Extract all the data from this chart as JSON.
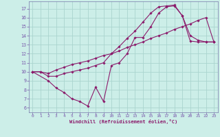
{
  "xlabel": "Windchill (Refroidissement éolien,°C)",
  "bg_color": "#cceee8",
  "grid_color": "#aad4ce",
  "line_color": "#8b1a6b",
  "spine_color": "#7777aa",
  "tick_color": "#7755aa",
  "xlim": [
    -0.5,
    23.5
  ],
  "ylim": [
    5.5,
    17.8
  ],
  "yticks": [
    6,
    7,
    8,
    9,
    10,
    11,
    12,
    13,
    14,
    15,
    16,
    17
  ],
  "xticks": [
    0,
    1,
    2,
    3,
    4,
    5,
    6,
    7,
    8,
    9,
    10,
    11,
    12,
    13,
    14,
    15,
    16,
    17,
    18,
    19,
    20,
    21,
    22,
    23
  ],
  "series": [
    {
      "x": [
        0,
        1,
        2,
        3,
        4,
        5,
        6,
        7,
        8,
        9,
        10,
        11,
        12,
        13,
        14,
        15,
        16,
        17,
        18,
        19,
        20,
        21,
        22,
        23
      ],
      "y": [
        10.0,
        10.0,
        9.8,
        10.2,
        10.5,
        10.8,
        11.0,
        11.2,
        11.5,
        11.8,
        12.0,
        12.3,
        12.7,
        13.0,
        13.3,
        13.7,
        14.0,
        14.3,
        14.7,
        15.0,
        15.3,
        15.7,
        16.0,
        13.3
      ]
    },
    {
      "x": [
        0,
        2,
        3,
        4,
        5,
        6,
        7,
        8,
        9,
        10,
        11,
        12,
        13,
        14,
        15,
        16,
        17,
        18,
        19,
        20,
        21,
        22,
        23
      ],
      "y": [
        10.0,
        9.0,
        8.2,
        7.7,
        7.0,
        6.7,
        6.2,
        8.3,
        6.7,
        10.7,
        11.0,
        12.0,
        13.8,
        13.8,
        15.0,
        16.5,
        17.2,
        17.3,
        16.2,
        13.4,
        13.3,
        13.3,
        13.3
      ]
    },
    {
      "x": [
        0,
        1,
        2,
        3,
        4,
        5,
        6,
        7,
        8,
        9,
        10,
        11,
        12,
        13,
        14,
        15,
        16,
        17,
        18,
        19,
        20,
        21,
        22,
        23
      ],
      "y": [
        10.0,
        10.0,
        9.5,
        9.5,
        9.8,
        10.0,
        10.2,
        10.4,
        10.7,
        11.0,
        12.0,
        12.8,
        13.7,
        14.5,
        15.5,
        16.5,
        17.2,
        17.3,
        17.4,
        16.2,
        14.0,
        13.5,
        13.3,
        13.3
      ]
    }
  ]
}
